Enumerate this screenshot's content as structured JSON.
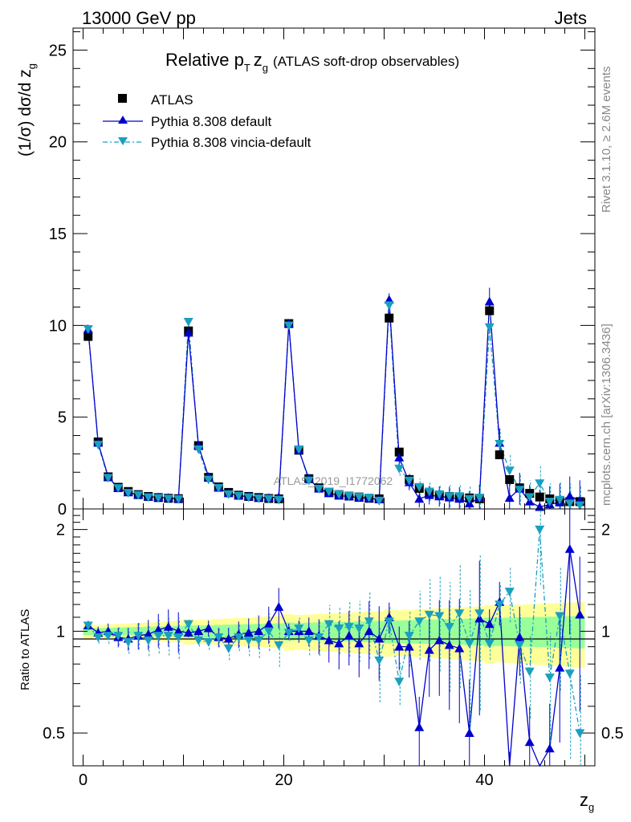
{
  "header": {
    "left": "13000 GeV pp",
    "right": "Jets",
    "title_main": "Relative p",
    "title_sub_T": "T",
    "title_z": "z",
    "title_sub_g": "g",
    "title_paren": "(ATLAS soft-drop observables)"
  },
  "side": {
    "rivet": "Rivet 3.1.10, ≥ 2.6M events",
    "mcplots": "mcplots.cern.ch [arXiv:1306.3436]"
  },
  "watermark": "ATLAS_2019_I1772062",
  "colors": {
    "data": "#000000",
    "default": "#0000cc",
    "vincia": "#1a9fbf",
    "band_yellow": "#ffff99",
    "band_green": "#99ff99"
  },
  "chart_data": [
    {
      "type": "line",
      "title": "Relative pT zg (ATLAS soft-drop observables)",
      "xlabel": "z_g",
      "ylabel": "(1/σ) dσ/d z_g",
      "xlim": [
        -1,
        51
      ],
      "ylim": [
        0,
        26.2
      ],
      "xticks": [
        0,
        20,
        40
      ],
      "yticks": [
        0,
        5,
        10,
        15,
        20,
        25
      ],
      "legend": [
        "ATLAS",
        "Pythia 8.308 default",
        "Pythia 8.308 vincia-default"
      ],
      "legend_position": "top-left",
      "x": [
        0.5,
        1.5,
        2.5,
        3.5,
        4.5,
        5.5,
        6.5,
        7.5,
        8.5,
        9.5,
        10.5,
        11.5,
        12.5,
        13.5,
        14.5,
        15.5,
        16.5,
        17.5,
        18.5,
        19.5,
        20.5,
        21.5,
        22.5,
        23.5,
        24.5,
        25.5,
        26.5,
        27.5,
        28.5,
        29.5,
        30.5,
        31.5,
        32.5,
        33.5,
        34.5,
        35.5,
        36.5,
        37.5,
        38.5,
        39.5,
        40.5,
        41.5,
        42.5,
        43.5,
        44.5,
        45.5,
        46.5,
        47.5,
        48.5,
        49.5
      ],
      "series": [
        {
          "name": "ATLAS",
          "marker": "square",
          "values": [
            9.4,
            3.65,
            1.75,
            1.18,
            0.95,
            0.78,
            0.68,
            0.62,
            0.58,
            0.56,
            9.7,
            3.45,
            1.72,
            1.2,
            0.9,
            0.75,
            0.68,
            0.62,
            0.57,
            0.55,
            10.1,
            3.2,
            1.65,
            1.15,
            0.9,
            0.78,
            0.7,
            0.65,
            0.58,
            0.55,
            10.4,
            3.1,
            1.6,
            1.12,
            0.85,
            0.72,
            0.68,
            0.62,
            0.6,
            0.55,
            10.8,
            2.95,
            1.6,
            1.15,
            0.85,
            0.65,
            0.55,
            0.45,
            0.4,
            0.4
          ]
        },
        {
          "name": "Pythia 8.308 default",
          "marker": "triangle-up",
          "values": [
            9.8,
            3.6,
            1.75,
            1.13,
            0.9,
            0.76,
            0.67,
            0.63,
            0.6,
            0.55,
            9.6,
            3.45,
            1.75,
            1.15,
            0.85,
            0.72,
            0.68,
            0.62,
            0.6,
            0.65,
            10.1,
            3.2,
            1.65,
            1.1,
            0.85,
            0.72,
            0.68,
            0.6,
            0.58,
            0.52,
            11.4,
            2.8,
            1.45,
            0.55,
            0.75,
            0.68,
            0.62,
            0.55,
            0.3,
            0.6,
            11.3,
            3.6,
            0.6,
            1.1,
            0.4,
            0.1,
            0.25,
            0.35,
            0.7,
            0.45
          ]
        },
        {
          "name": "Pythia 8.308 vincia-default",
          "marker": "triangle-down",
          "values": [
            9.8,
            3.5,
            1.7,
            1.14,
            0.88,
            0.76,
            0.64,
            0.6,
            0.56,
            0.54,
            10.2,
            3.25,
            1.6,
            1.15,
            0.8,
            0.72,
            0.64,
            0.58,
            0.55,
            0.5,
            10.0,
            3.25,
            1.55,
            1.1,
            0.95,
            0.8,
            0.72,
            0.66,
            0.62,
            0.45,
            11.1,
            2.2,
            1.55,
            1.2,
            0.95,
            0.8,
            0.7,
            0.7,
            0.55,
            0.62,
            9.9,
            3.55,
            2.1,
            1.05,
            0.65,
            1.4,
            0.4,
            0.5,
            0.3,
            0.2
          ]
        }
      ]
    },
    {
      "type": "line",
      "title": "",
      "xlabel": "z_g",
      "ylabel": "Ratio to ATLAS",
      "xlim": [
        -1,
        51
      ],
      "ylim": [
        0.4,
        2.3
      ],
      "scale": "log",
      "yticks": [
        0.5,
        1,
        2
      ],
      "x": [
        0.5,
        1.5,
        2.5,
        3.5,
        4.5,
        5.5,
        6.5,
        7.5,
        8.5,
        9.5,
        10.5,
        11.5,
        12.5,
        13.5,
        14.5,
        15.5,
        16.5,
        17.5,
        18.5,
        19.5,
        20.5,
        21.5,
        22.5,
        23.5,
        24.5,
        25.5,
        26.5,
        27.5,
        28.5,
        29.5,
        30.5,
        31.5,
        32.5,
        33.5,
        34.5,
        35.5,
        36.5,
        37.5,
        38.5,
        39.5,
        40.5,
        41.5,
        42.5,
        43.5,
        44.5,
        45.5,
        46.5,
        47.5,
        48.5,
        49.5
      ],
      "series": [
        {
          "name": "Pythia 8.308 default",
          "values": [
            1.04,
            0.99,
            1.0,
            0.96,
            0.95,
            0.97,
            0.98,
            1.01,
            1.03,
            1.0,
            0.99,
            1.0,
            1.02,
            0.96,
            0.95,
            0.98,
            0.99,
            1.0,
            1.05,
            1.18,
            1.0,
            1.0,
            1.0,
            0.97,
            0.94,
            0.92,
            0.97,
            0.92,
            1.0,
            0.95,
            1.1,
            0.9,
            0.9,
            0.52,
            0.88,
            0.94,
            0.91,
            0.89,
            0.5,
            1.09,
            1.05,
            1.22,
            0.37,
            0.96,
            0.47,
            0.15,
            0.45,
            0.78,
            1.75,
            1.12
          ]
        },
        {
          "name": "Pythia 8.308 vincia-default",
          "values": [
            1.04,
            0.96,
            0.97,
            0.97,
            0.93,
            0.97,
            0.94,
            0.97,
            0.97,
            0.96,
            1.05,
            0.94,
            0.93,
            0.96,
            0.89,
            0.96,
            0.94,
            0.94,
            1.0,
            0.91,
            0.99,
            1.02,
            0.94,
            0.96,
            1.05,
            1.02,
            1.03,
            1.02,
            1.07,
            0.82,
            1.07,
            0.71,
            0.97,
            1.07,
            1.12,
            1.11,
            1.03,
            1.13,
            0.92,
            1.13,
            0.92,
            1.2,
            1.31,
            0.91,
            0.76,
            2.0,
            0.73,
            1.11,
            0.75,
            0.5
          ]
        }
      ]
    }
  ]
}
